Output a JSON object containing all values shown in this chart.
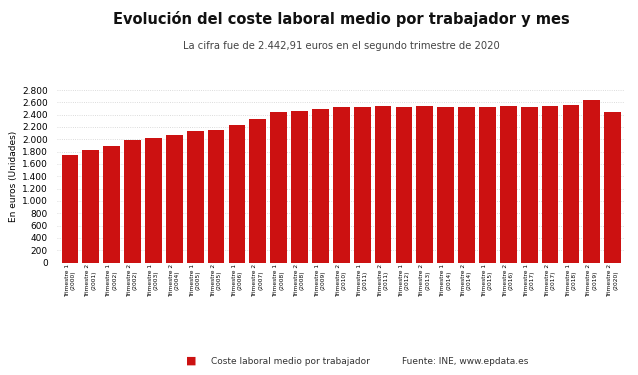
{
  "title": "Evolución del coste laboral medio por trabajador y mes",
  "subtitle": "La cifra fue de 2.442,91 euros en el segundo trimestre de 2020",
  "ylabel": "En euros (Unidades)",
  "bar_color": "#cc1111",
  "background_color": "#ffffff",
  "grid_color": "#d0d0d0",
  "legend_label": "Coste laboral medio por trabajador",
  "source_text": "Fuente: INE, www.epdata.es",
  "ylim": [
    0,
    2800
  ],
  "yticks": [
    0,
    200,
    400,
    600,
    800,
    1000,
    1200,
    1400,
    1600,
    1800,
    2000,
    2200,
    2400,
    2600,
    2800
  ],
  "categories": [
    "Trimestre 1\n(2000)",
    "Trimestre 2\n(2001)",
    "Trimestre 1\n(2002)",
    "Trimestre 2\n(2002)",
    "Trimestre 1\n(2003)",
    "Trimestre 2\n(2004)",
    "Trimestre 1\n(2005)",
    "Trimestre 2\n(2005)",
    "Trimestre 1\n(2006)",
    "Trimestre 2\n(2007)",
    "Trimestre 1\n(2008)",
    "Trimestre 2\n(2008)",
    "Trimestre 1\n(2009)",
    "Trimestre 2\n(2010)",
    "Trimestre 1\n(2011)",
    "Trimestre 2\n(2011)",
    "Trimestre 1\n(2012)",
    "Trimestre 2\n(2013)",
    "Trimestre 1\n(2014)",
    "Trimestre 2\n(2014)",
    "Trimestre 1\n(2015)",
    "Trimestre 2\n(2016)",
    "Trimestre 1\n(2017)",
    "Trimestre 2\n(2017)",
    "Trimestre 1\n(2018)",
    "Trimestre 2\n(2019)",
    "Trimestre 2\n(2020)"
  ],
  "values": [
    1740,
    1830,
    1890,
    1995,
    2020,
    2075,
    2130,
    2150,
    2240,
    2330,
    2450,
    2460,
    2490,
    2520,
    2530,
    2540,
    2530,
    2540,
    2520,
    2530,
    2530,
    2545,
    2530,
    2545,
    2560,
    2635,
    2443
  ]
}
